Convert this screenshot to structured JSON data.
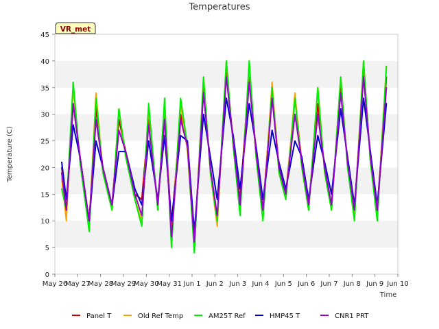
{
  "chart_data": {
    "type": "line",
    "title": "Temperatures",
    "xlabel": "Time",
    "ylabel": "Temperature (C)",
    "ylim": [
      0,
      45
    ],
    "yticks": [
      0,
      5,
      10,
      15,
      20,
      25,
      30,
      35,
      40,
      45
    ],
    "xlim": [
      0,
      15
    ],
    "xticks": [
      {
        "x": 0,
        "label": "May 26"
      },
      {
        "x": 1,
        "label": "May 27"
      },
      {
        "x": 2,
        "label": "May 28"
      },
      {
        "x": 3,
        "label": "May 29"
      },
      {
        "x": 4,
        "label": "May 30"
      },
      {
        "x": 5,
        "label": "May 31"
      },
      {
        "x": 6,
        "label": "Jun 1"
      },
      {
        "x": 7,
        "label": "Jun 2"
      },
      {
        "x": 8,
        "label": "Jun 3"
      },
      {
        "x": 9,
        "label": "Jun 4"
      },
      {
        "x": 10,
        "label": "Jun 5"
      },
      {
        "x": 11,
        "label": "Jun 6"
      },
      {
        "x": 12,
        "label": "Jun 7"
      },
      {
        "x": 13,
        "label": "Jun 8"
      },
      {
        "x": 14,
        "label": "Jun 9"
      },
      {
        "x": 15,
        "label": "Jun 10"
      }
    ],
    "grid": "horizontal bands",
    "band_color": "#f2f2f2",
    "legend_position": "bottom",
    "annotation": "VR_met",
    "series": [
      {
        "name": "Panel T",
        "color": "#cc0000",
        "x": [
          0.3,
          0.5,
          0.8,
          1.1,
          1.5,
          1.8,
          2.1,
          2.5,
          2.8,
          3.1,
          3.5,
          3.8,
          4.1,
          4.5,
          4.8,
          5.1,
          5.5,
          5.8,
          6.1,
          6.5,
          6.8,
          7.1,
          7.5,
          7.8,
          8.1,
          8.5,
          8.8,
          9.1,
          9.5,
          9.8,
          10.1,
          10.5,
          10.8,
          11.1,
          11.5,
          11.8,
          12.1,
          12.5,
          12.8,
          13.1,
          13.5,
          13.8,
          14.1,
          14.5
        ],
        "y": [
          20,
          12,
          32,
          22,
          10,
          31,
          20,
          13,
          29,
          23,
          15,
          14,
          29,
          13,
          30,
          9,
          30,
          24,
          6,
          35,
          20,
          10,
          38,
          25,
          14,
          38,
          23,
          12,
          35,
          20,
          15,
          33,
          21,
          13,
          32,
          20,
          13,
          35,
          21,
          12,
          38,
          22,
          12,
          37
        ]
      },
      {
        "name": "Old Ref Temp",
        "color": "#ffa500",
        "x": [
          0.3,
          0.5,
          0.8,
          1.1,
          1.5,
          1.8,
          2.1,
          2.5,
          2.8,
          3.1,
          3.5,
          3.8,
          4.1,
          4.5,
          4.8,
          5.1,
          5.5,
          5.8,
          6.1,
          6.5,
          6.8,
          7.1,
          7.5,
          7.8,
          8.1,
          8.5,
          8.8,
          9.1,
          9.5,
          9.8,
          10.1,
          10.5,
          10.8,
          11.1,
          11.5,
          11.8,
          12.1,
          12.5,
          12.8,
          13.1,
          13.5,
          13.8,
          14.1,
          14.5
        ],
        "y": [
          18,
          10,
          35,
          21,
          9,
          34,
          19,
          12,
          31,
          22,
          14,
          10,
          31,
          12,
          32,
          7,
          32,
          23,
          5,
          37,
          19,
          9,
          40,
          24,
          12,
          39,
          22,
          11,
          36,
          19,
          14,
          34,
          20,
          12,
          35,
          19,
          12,
          37,
          20,
          11,
          40,
          21,
          11,
          39
        ]
      },
      {
        "name": "AM25T Ref",
        "color": "#00ee00",
        "x": [
          0.3,
          0.5,
          0.8,
          1.1,
          1.5,
          1.8,
          2.1,
          2.5,
          2.8,
          3.1,
          3.5,
          3.8,
          4.1,
          4.5,
          4.8,
          5.1,
          5.5,
          5.8,
          6.1,
          6.5,
          6.8,
          7.1,
          7.5,
          7.8,
          8.1,
          8.5,
          8.8,
          9.1,
          9.5,
          9.8,
          10.1,
          10.5,
          10.8,
          11.1,
          11.5,
          11.8,
          12.1,
          12.5,
          12.8,
          13.1,
          13.5,
          13.8,
          14.1,
          14.5
        ],
        "y": [
          16,
          12,
          36,
          21,
          8,
          33,
          19,
          12,
          31,
          22,
          14,
          9,
          32,
          12,
          33,
          5,
          33,
          24,
          4,
          37,
          19,
          10,
          40,
          24,
          11,
          40,
          22,
          10,
          35,
          19,
          14,
          33,
          20,
          12,
          35,
          19,
          12,
          37,
          20,
          10,
          40,
          21,
          10,
          39
        ]
      },
      {
        "name": "HMP45 T",
        "color": "#0000cc",
        "x": [
          0.3,
          0.5,
          0.8,
          1.1,
          1.5,
          1.8,
          2.1,
          2.5,
          2.8,
          3.1,
          3.5,
          3.8,
          4.1,
          4.5,
          4.8,
          5.1,
          5.5,
          5.8,
          6.1,
          6.5,
          6.8,
          7.1,
          7.5,
          7.8,
          8.1,
          8.5,
          8.8,
          9.1,
          9.5,
          9.8,
          10.1,
          10.5,
          10.8,
          11.1,
          11.5,
          11.8,
          12.1,
          12.5,
          12.8,
          13.1,
          13.5,
          13.8,
          14.1,
          14.5
        ],
        "y": [
          21,
          14,
          28,
          22,
          10,
          25,
          20,
          13,
          23,
          23,
          16,
          13,
          25,
          14,
          26,
          10,
          26,
          25,
          8,
          30,
          22,
          14,
          33,
          26,
          16,
          32,
          24,
          14,
          27,
          21,
          16,
          25,
          22,
          14,
          26,
          21,
          15,
          31,
          22,
          13,
          33,
          23,
          13,
          32
        ]
      },
      {
        "name": "CNR1 PRT",
        "color": "#9900cc",
        "x": [
          0.3,
          0.5,
          0.8,
          1.1,
          1.5,
          1.8,
          2.1,
          2.5,
          2.8,
          3.1,
          3.5,
          3.8,
          4.1,
          4.5,
          4.8,
          5.1,
          5.5,
          5.8,
          6.1,
          6.5,
          6.8,
          7.1,
          7.5,
          7.8,
          8.1,
          8.5,
          8.8,
          9.1,
          9.5,
          9.8,
          10.1,
          10.5,
          10.8,
          11.1,
          11.5,
          11.8,
          12.1,
          12.5,
          12.8,
          13.1,
          13.5,
          13.8,
          14.1,
          14.5
        ],
        "y": [
          19,
          12,
          32,
          22,
          10,
          29,
          20,
          13,
          27,
          23,
          15,
          11,
          28,
          13,
          29,
          7,
          29,
          24,
          6,
          34,
          20,
          11,
          37,
          25,
          13,
          36,
          23,
          12,
          33,
          20,
          15,
          30,
          21,
          13,
          30,
          20,
          13,
          34,
          21,
          12,
          37,
          22,
          12,
          35
        ]
      }
    ]
  }
}
